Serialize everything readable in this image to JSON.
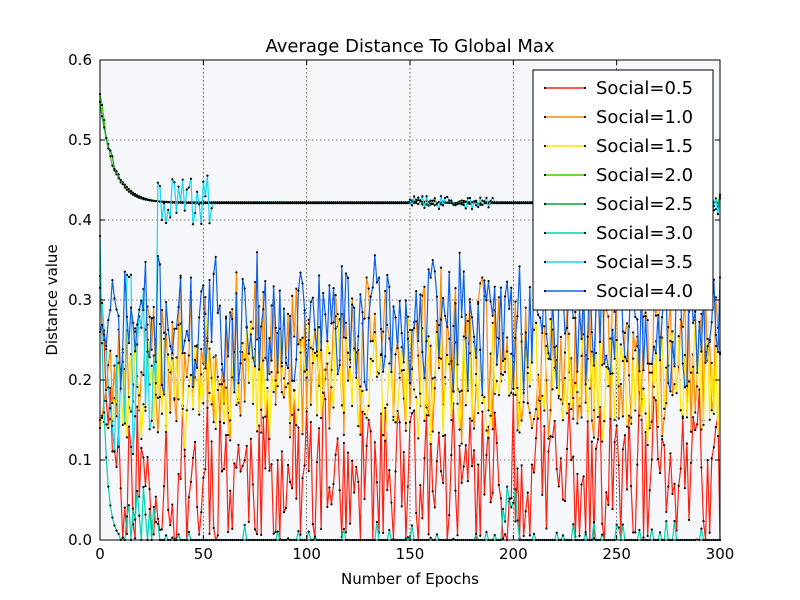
{
  "chart_data": {
    "type": "line",
    "title": "Average Distance To Global Max",
    "xlabel": "Number of Epochs",
    "ylabel": "Distance value",
    "xlim": [
      0,
      300
    ],
    "ylim": [
      0.0,
      0.6
    ],
    "xticks": [
      "0",
      "50",
      "100",
      "150",
      "200",
      "250",
      "300"
    ],
    "yticks": [
      "0.0",
      "0.1",
      "0.2",
      "0.3",
      "0.4",
      "0.5",
      "0.6"
    ],
    "grid": true,
    "legend_position": "top-right",
    "colors": {
      "background": "#f5f7fb",
      "marker": "#000000"
    },
    "series": [
      {
        "name": "Social=0.5",
        "color": "#ff2010",
        "model": "noisy",
        "start": 0.33,
        "mean": 0.085,
        "amp": 0.085,
        "decay": 4,
        "floor": 0.0,
        "ceil": 0.19,
        "seed": 11,
        "zeroProb": 0.12
      },
      {
        "name": "Social=1.0",
        "color": "#ff8c00",
        "model": "noisy",
        "start": 0.15,
        "mean": 0.23,
        "amp": 0.09,
        "decay": 6,
        "floor": 0.09,
        "ceil": 0.39,
        "seed": 23,
        "zeroProb": 0
      },
      {
        "name": "Social=1.5",
        "color": "#ffe800",
        "model": "noisy",
        "start": 0.14,
        "mean": 0.2,
        "amp": 0.07,
        "decay": 6,
        "floor": 0.08,
        "ceil": 0.33,
        "seed": 37,
        "zeroProb": 0
      },
      {
        "name": "Social=2.0",
        "color": "#44cc00",
        "model": "plateau",
        "start": 0.56,
        "level": 0.422,
        "decay": 6,
        "seed": 41
      },
      {
        "name": "Social=2.5",
        "color": "#00aa33",
        "model": "plateau",
        "start": 0.55,
        "level": 0.421,
        "decay": 7,
        "seed": 43
      },
      {
        "name": "Social=3.0",
        "color": "#00d5b0",
        "model": "toZero",
        "start": 0.38,
        "seed": 53
      },
      {
        "name": "Social=3.5",
        "color": "#10d8f5",
        "model": "plateauOsc",
        "start": 0.32,
        "level": 0.422,
        "seed": 61
      },
      {
        "name": "Social=4.0",
        "color": "#1060e8",
        "model": "noisy",
        "start": 0.26,
        "mean": 0.27,
        "amp": 0.075,
        "decay": 5,
        "floor": 0.15,
        "ceil": 0.42,
        "seed": 71,
        "zeroProb": 0
      }
    ]
  }
}
